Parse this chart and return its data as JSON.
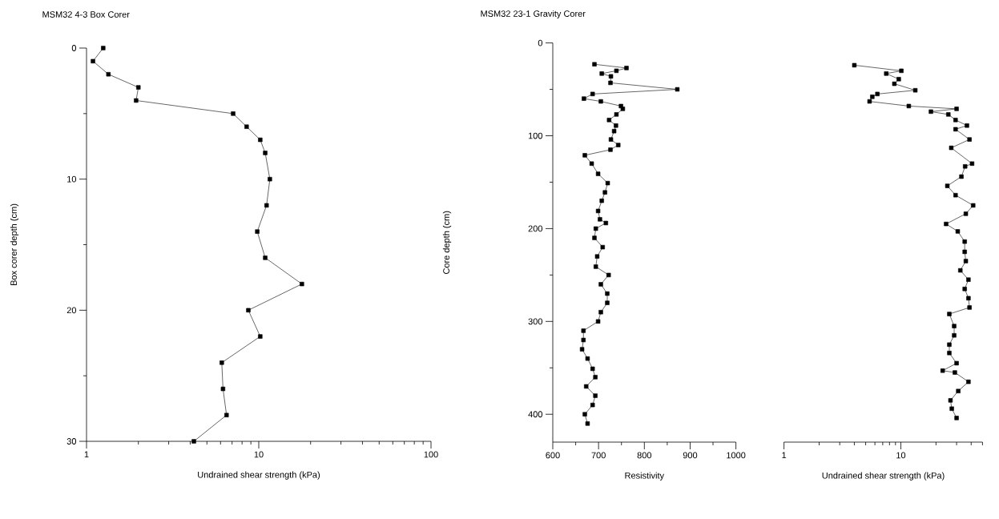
{
  "chart_data": [
    {
      "type": "line",
      "title": "MSM32 4-3 Box Corer",
      "xlabel": "Undrained shear strength (kPa)",
      "ylabel": "Box corer depth (cm)",
      "log": "x",
      "marker": "square",
      "line_style": "solid",
      "grid": false,
      "xlim": [
        1,
        100
      ],
      "ylim": [
        30,
        0
      ],
      "xticks": [
        1,
        {
          "value": 2,
          "label": null
        },
        {
          "value": 3,
          "label": null
        },
        {
          "value": 4,
          "label": null
        },
        {
          "value": 5,
          "label": null
        },
        {
          "value": 6,
          "label": null
        },
        {
          "value": 7,
          "label": null
        },
        {
          "value": 8,
          "label": null
        },
        {
          "value": 9,
          "label": null
        },
        10,
        {
          "value": 20,
          "label": null
        },
        {
          "value": 30,
          "label": null
        },
        {
          "value": 40,
          "label": null
        },
        {
          "value": 50,
          "label": null
        },
        {
          "value": 60,
          "label": null
        },
        {
          "value": 70,
          "label": null
        },
        {
          "value": 80,
          "label": null
        },
        {
          "value": 90,
          "label": null
        },
        100
      ],
      "yticks": [
        0,
        {
          "value": 5,
          "label": null
        },
        10,
        {
          "value": 15,
          "label": null
        },
        20,
        {
          "value": 25,
          "label": null
        },
        30
      ],
      "series": [
        {
          "color": "#000000",
          "x": [
            1.25,
            1.09,
            1.34,
            2.0,
            1.94,
            7.1,
            8.5,
            10.2,
            10.9,
            11.6,
            11.1,
            9.8,
            10.9,
            17.8,
            8.7,
            10.2,
            6.1,
            6.2,
            6.5,
            4.2
          ],
          "values": [
            0,
            1,
            2,
            3,
            4,
            5,
            6,
            7,
            8,
            10,
            12,
            14,
            16,
            18,
            20,
            22,
            24,
            26,
            28,
            30
          ]
        }
      ]
    },
    {
      "type": "line",
      "title": "MSM32 23-1 Gravity Corer",
      "xlabel": "Resistivity",
      "ylabel": "Core depth (cm)",
      "marker": "square",
      "line_style": "solid",
      "grid": false,
      "xlim": [
        600,
        1000
      ],
      "ylim": [
        430,
        0
      ],
      "xticks": [
        600,
        {
          "value": 650,
          "label": null
        },
        700,
        {
          "value": 750,
          "label": null
        },
        800,
        {
          "value": 850,
          "label": null
        },
        900,
        {
          "value": 950,
          "label": null
        },
        1000
      ],
      "yticks": [
        0,
        {
          "value": 50,
          "label": null
        },
        100,
        {
          "value": 150,
          "label": null
        },
        200,
        {
          "value": 250,
          "label": null
        },
        300,
        {
          "value": 350,
          "label": null
        },
        400
      ],
      "series": [
        {
          "color": "#000000",
          "x": [
            691,
            761,
            739,
            707,
            727,
            726,
            872,
            687,
            668,
            705,
            749,
            753,
            739,
            723,
            738,
            734,
            727,
            743,
            726,
            670,
            685,
            699,
            720,
            714,
            707,
            699,
            703,
            716,
            694,
            691,
            709,
            697,
            694,
            722,
            705,
            719,
            719,
            705,
            699,
            667,
            667,
            664,
            676,
            687,
            693,
            673,
            693,
            687,
            670,
            676
          ],
          "values": [
            23,
            27,
            30,
            33,
            36,
            43,
            50,
            55,
            60,
            63,
            68,
            71,
            77,
            83,
            89,
            95,
            104,
            110,
            115,
            121,
            130,
            141,
            151,
            161,
            170,
            181,
            190,
            194,
            200,
            210,
            220,
            230,
            241,
            250,
            260,
            270,
            280,
            290,
            300,
            310,
            320,
            330,
            340,
            351,
            360,
            370,
            380,
            390,
            400,
            410
          ]
        }
      ]
    },
    {
      "type": "line",
      "xlabel": "Undrained shear strength (kPa)",
      "log": "x",
      "marker": "square",
      "line_style": "solid",
      "grid": false,
      "tick_labels": "x",
      "xlim": [
        1,
        50
      ],
      "ylim": [
        430,
        0
      ],
      "xticks": [
        1,
        {
          "value": 2,
          "label": null
        },
        {
          "value": 3,
          "label": null
        },
        {
          "value": 4,
          "label": null
        },
        {
          "value": 5,
          "label": null
        },
        {
          "value": 6,
          "label": null
        },
        {
          "value": 7,
          "label": null
        },
        {
          "value": 8,
          "label": null
        },
        {
          "value": 9,
          "label": null
        },
        10,
        {
          "value": 20,
          "label": null
        },
        {
          "value": 30,
          "label": null
        },
        {
          "value": 40,
          "label": null
        },
        {
          "value": 50,
          "label": null
        }
      ],
      "series": [
        {
          "color": "#000000",
          "x": [
            4.0,
            10.1,
            7.5,
            9.6,
            8.8,
            13.3,
            6.3,
            5.7,
            5.4,
            11.7,
            30,
            18.1,
            25.5,
            29.4,
            36.8,
            29.4,
            38.7,
            27,
            40.7,
            35.5,
            33,
            25,
            29.4,
            41.6,
            36,
            24.4,
            30.7,
            35.2,
            35.2,
            36,
            32.3,
            37.9,
            35.2,
            37.9,
            38.7,
            26,
            28.6,
            28.6,
            26,
            26,
            30,
            22.8,
            29,
            37.9,
            31,
            26.6,
            27.3,
            30
          ],
          "values": [
            24,
            30,
            33,
            39,
            44,
            51,
            55,
            58,
            63,
            68,
            71,
            74,
            77,
            83,
            89,
            93,
            104,
            113,
            130,
            133,
            144,
            154,
            164,
            175,
            184,
            195,
            203,
            214,
            225,
            235,
            245,
            255,
            265,
            275,
            285,
            292,
            305,
            315,
            325,
            334,
            345,
            353,
            355,
            365,
            375,
            385,
            394,
            404
          ]
        }
      ]
    }
  ]
}
